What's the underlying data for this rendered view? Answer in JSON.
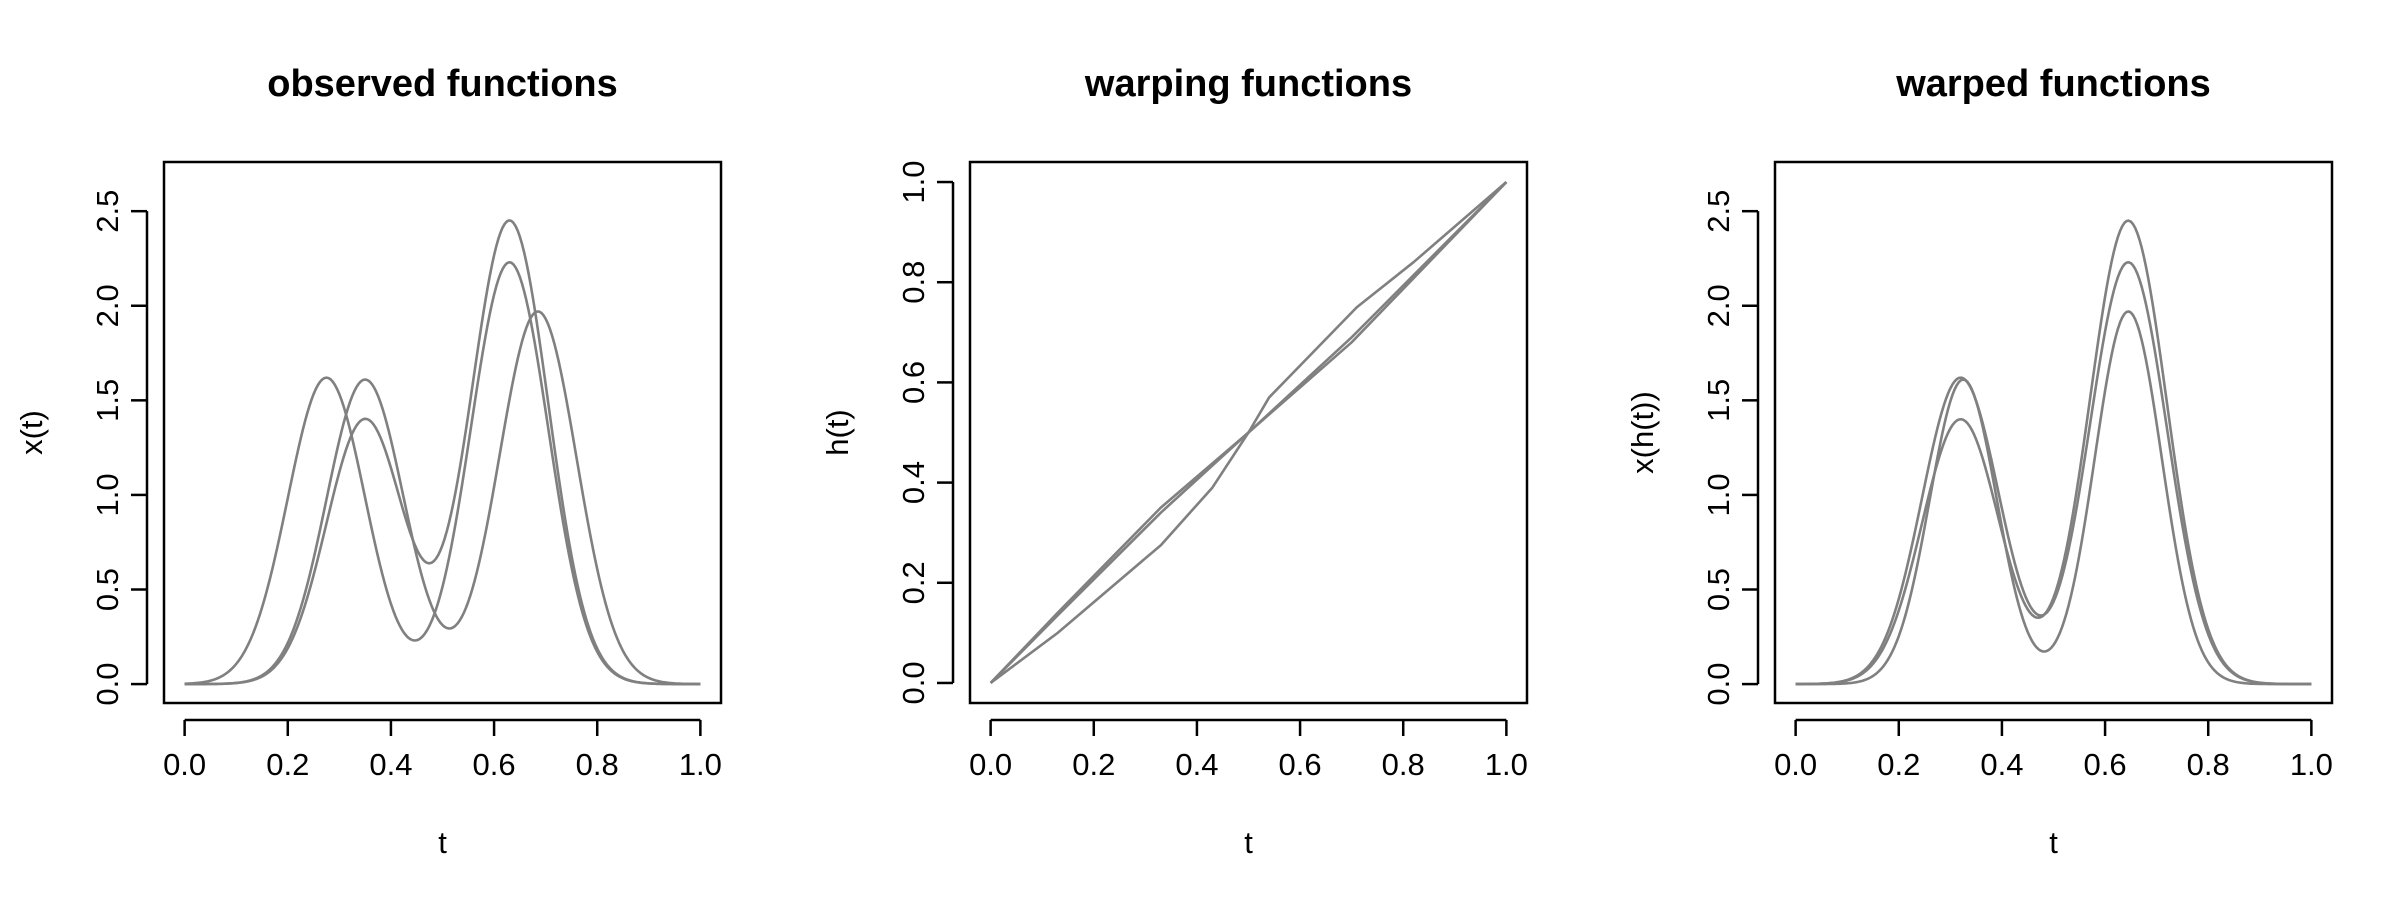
{
  "chart_data": [
    {
      "type": "line",
      "title": "observed functions",
      "xlabel": "t",
      "ylabel": "x(t)",
      "xlim": [
        -0.04,
        1.04
      ],
      "ylim": [
        -0.1,
        2.76
      ],
      "xticks": [
        "0.0",
        "0.2",
        "0.4",
        "0.6",
        "0.8",
        "1.0"
      ],
      "yticks": [
        "0.0",
        "0.5",
        "1.0",
        "1.5",
        "2.0",
        "2.5"
      ],
      "line_color": "#808080",
      "series": [
        {
          "peaks": [
            {
              "mu": 0.275,
              "amp": 1.62,
              "sigma": 0.075
            },
            {
              "mu": 0.63,
              "amp": 2.23,
              "sigma": 0.075
            }
          ]
        },
        {
          "peaks": [
            {
              "mu": 0.35,
              "amp": 1.4,
              "sigma": 0.075
            },
            {
              "mu": 0.63,
              "amp": 2.45,
              "sigma": 0.075
            }
          ]
        },
        {
          "peaks": [
            {
              "mu": 0.35,
              "amp": 1.61,
              "sigma": 0.075
            },
            {
              "mu": 0.685,
              "amp": 1.97,
              "sigma": 0.075
            }
          ]
        }
      ]
    },
    {
      "type": "line",
      "title": "warping functions",
      "xlabel": "t",
      "ylabel": "h(t)",
      "xlim": [
        -0.04,
        1.04
      ],
      "ylim": [
        -0.04,
        1.04
      ],
      "xticks": [
        "0.0",
        "0.2",
        "0.4",
        "0.6",
        "0.8",
        "1.0"
      ],
      "yticks": [
        "0.0",
        "0.2",
        "0.4",
        "0.6",
        "0.8",
        "1.0"
      ],
      "line_color": "#808080",
      "series": [
        {
          "x": [
            0.0,
            0.13,
            0.33,
            0.43,
            0.5,
            0.54,
            0.71,
            0.82,
            1.0
          ],
          "y": [
            0.0,
            0.1,
            0.275,
            0.39,
            0.5,
            0.57,
            0.75,
            0.84,
            1.0
          ]
        },
        {
          "x": [
            0.0,
            0.13,
            0.33,
            0.5,
            0.7,
            1.0
          ],
          "y": [
            0.0,
            0.14,
            0.35,
            0.5,
            0.68,
            1.0
          ]
        },
        {
          "x": [
            0.0,
            0.13,
            0.33,
            0.5,
            0.7,
            1.0
          ],
          "y": [
            0.0,
            0.135,
            0.34,
            0.5,
            0.69,
            1.0
          ]
        }
      ]
    },
    {
      "type": "line",
      "title": "warped functions",
      "xlabel": "t",
      "ylabel": "x(h(t))",
      "xlim": [
        -0.04,
        1.04
      ],
      "ylim": [
        -0.1,
        2.76
      ],
      "xticks": [
        "0.0",
        "0.2",
        "0.4",
        "0.6",
        "0.8",
        "1.0"
      ],
      "yticks": [
        "0.0",
        "0.5",
        "1.0",
        "1.5",
        "2.0",
        "2.5"
      ],
      "line_color": "#808080",
      "series": [
        {
          "peaks": [
            {
              "mu": 0.32,
              "amp": 1.62,
              "sigma": 0.075
            },
            {
              "mu": 0.645,
              "amp": 2.23,
              "sigma": 0.075
            }
          ]
        },
        {
          "peaks": [
            {
              "mu": 0.32,
              "amp": 1.4,
              "sigma": 0.075
            },
            {
              "mu": 0.645,
              "amp": 2.45,
              "sigma": 0.075
            }
          ]
        },
        {
          "peaks": [
            {
              "mu": 0.325,
              "amp": 1.61,
              "sigma": 0.065
            },
            {
              "mu": 0.645,
              "amp": 1.97,
              "sigma": 0.065
            }
          ]
        }
      ]
    }
  ]
}
